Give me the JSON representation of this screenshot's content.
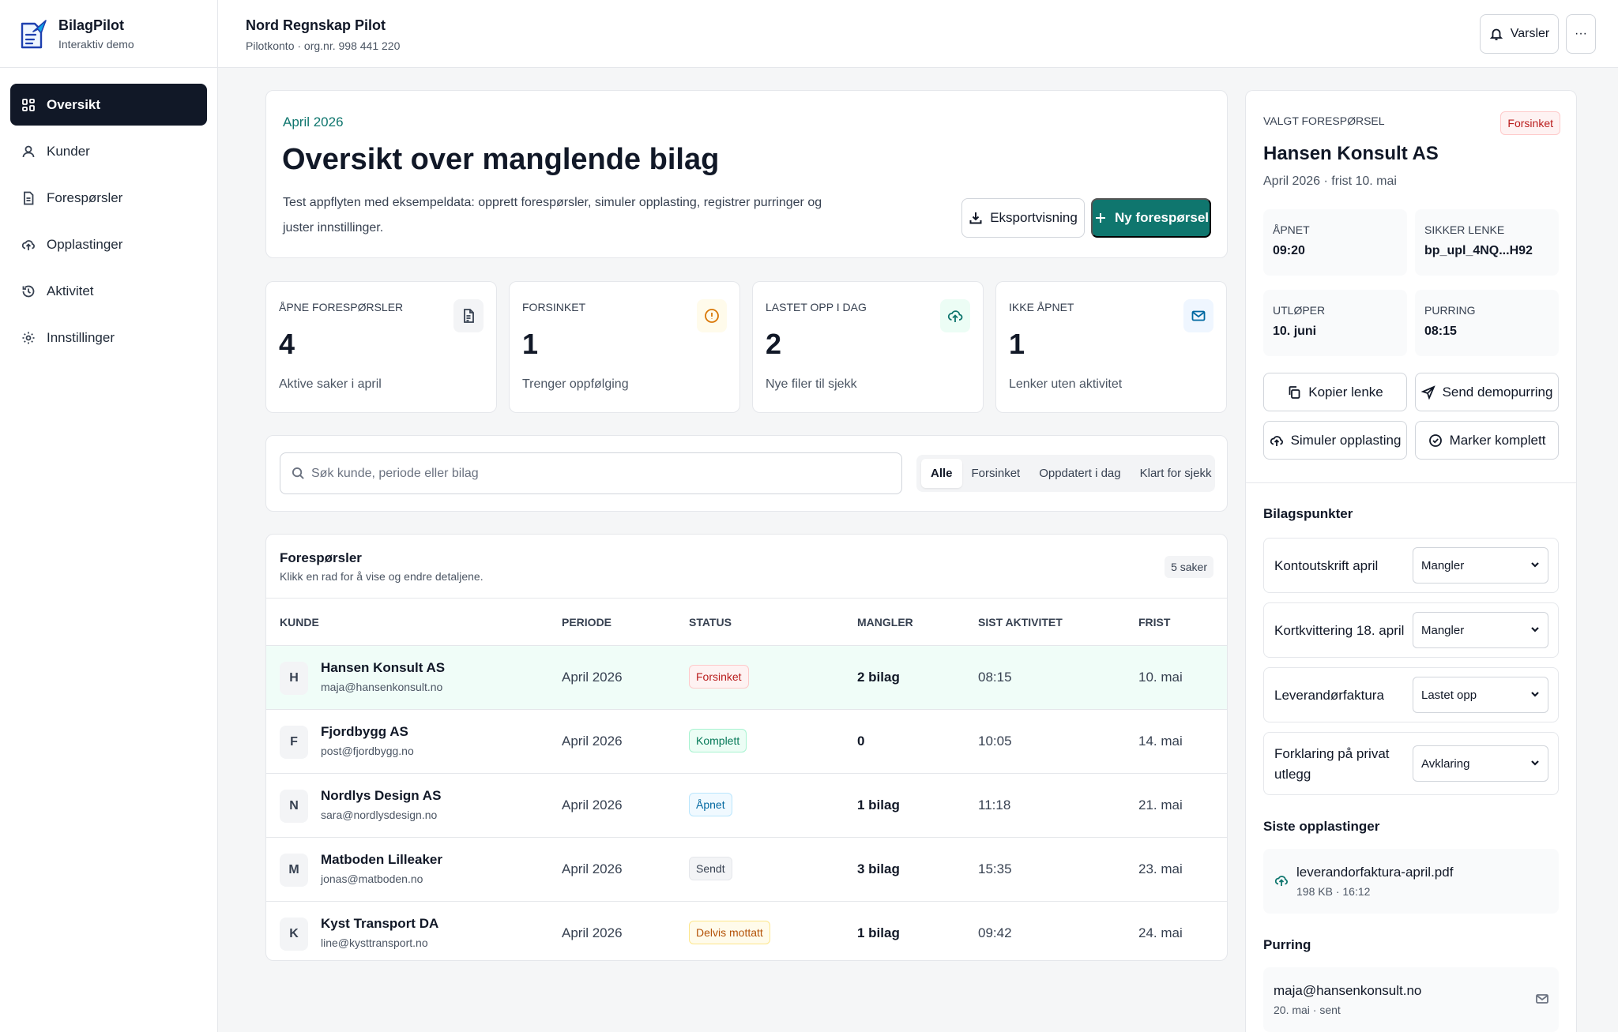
{
  "brand": {
    "name": "BilagPilot",
    "subtitle": "Interaktiv demo"
  },
  "nav": [
    {
      "label": "Oversikt",
      "icon": "grid-icon",
      "active": true
    },
    {
      "label": "Kunder",
      "icon": "user-icon"
    },
    {
      "label": "Forespørsler",
      "icon": "document-icon"
    },
    {
      "label": "Opplastinger",
      "icon": "cloud-upload-icon"
    },
    {
      "label": "Aktivitet",
      "icon": "history-icon"
    },
    {
      "label": "Innstillinger",
      "icon": "gear-icon"
    }
  ],
  "topbar": {
    "org_name": "Nord Regnskap Pilot",
    "org_sub": "Pilotkonto · org.nr. 998 441 220",
    "notify_label": "Varsler",
    "more_label": "···"
  },
  "hero": {
    "period": "April 2026",
    "title": "Oversikt over manglende bilag",
    "description": "Test appflyten med eksempeldata: opprett forespørsler, simuler opplasting, registrer purringer og juster innstillinger.",
    "export_label": "Eksportvisning",
    "new_label": "Ny forespørsel"
  },
  "stats": [
    {
      "label": "Åpne forespørsler",
      "value": "4",
      "sub": "Aktive saker i april",
      "icon": "document-icon",
      "color": "#374151",
      "bg": "#f3f4f6"
    },
    {
      "label": "Forsinket",
      "value": "1",
      "sub": "Trenger oppfølging",
      "icon": "alert-circle-icon",
      "color": "#d97706",
      "bg": "#fffbeb"
    },
    {
      "label": "Lastet opp i dag",
      "value": "2",
      "sub": "Nye filer til sjekk",
      "icon": "cloud-upload-icon",
      "color": "#0f766e",
      "bg": "#ecfdf5"
    },
    {
      "label": "Ikke åpnet",
      "value": "1",
      "sub": "Lenker uten aktivitet",
      "icon": "mail-icon",
      "color": "#0369a1",
      "bg": "#eff6ff"
    }
  ],
  "search": {
    "placeholder": "Søk kunde, periode eller bilag",
    "value": ""
  },
  "filters": [
    "Alle",
    "Forsinket",
    "Oppdatert i dag",
    "Klart for sjekk"
  ],
  "table": {
    "title": "Forespørsler",
    "subtitle": "Klikk en rad for å vise og endre detaljene.",
    "count": "5 saker",
    "columns": [
      "Kunde",
      "Periode",
      "Status",
      "Mangler",
      "Sist aktivitet",
      "Frist"
    ],
    "rows": [
      {
        "initial": "H",
        "name": "Hansen Konsult AS",
        "email": "maja@hansenkonsult.no",
        "period": "April 2026",
        "status": "Forsinket",
        "status_color": "#b91c1c",
        "status_bg": "#fef2f2",
        "status_border": "#fecaca",
        "missing": "2 bilag",
        "last": "08:15",
        "due": "10. mai",
        "selected": true
      },
      {
        "initial": "F",
        "name": "Fjordbygg AS",
        "email": "post@fjordbygg.no",
        "period": "April 2026",
        "status": "Komplett",
        "status_color": "#047857",
        "status_bg": "#ecfdf5",
        "status_border": "#a7f3d0",
        "missing": "0",
        "last": "10:05",
        "due": "14. mai"
      },
      {
        "initial": "N",
        "name": "Nordlys Design AS",
        "email": "sara@nordlysdesign.no",
        "period": "April 2026",
        "status": "Åpnet",
        "status_color": "#0369a1",
        "status_bg": "#f0f9ff",
        "status_border": "#bae6fd",
        "missing": "1 bilag",
        "last": "11:18",
        "due": "21. mai"
      },
      {
        "initial": "M",
        "name": "Matboden Lilleaker",
        "email": "jonas@matboden.no",
        "period": "April 2026",
        "status": "Sendt",
        "status_color": "#374151",
        "status_bg": "#f3f4f6",
        "status_border": "#e5e7eb",
        "missing": "3 bilag",
        "last": "15:35",
        "due": "23. mai"
      },
      {
        "initial": "K",
        "name": "Kyst Transport DA",
        "email": "line@kysttransport.no",
        "period": "April 2026",
        "status": "Delvis mottatt",
        "status_color": "#b45309",
        "status_bg": "#fffbeb",
        "status_border": "#fde68a",
        "missing": "1 bilag",
        "last": "09:42",
        "due": "24. mai"
      }
    ]
  },
  "panel": {
    "label": "Valgt forespørsel",
    "badge": "Forsinket",
    "name": "Hansen Konsult AS",
    "meta": "April 2026 · frist 10. mai",
    "details": [
      {
        "label": "Åpnet",
        "value": "09:20"
      },
      {
        "label": "Sikker lenke",
        "value": "bp_upl_4NQ...H92"
      },
      {
        "label": "Utløper",
        "value": "10. juni"
      },
      {
        "label": "Purring",
        "value": "08:15"
      }
    ],
    "actions": [
      {
        "label": "Kopier lenke",
        "icon": "copy-icon"
      },
      {
        "label": "Send demopurring",
        "icon": "send-icon"
      },
      {
        "label": "Simuler opplasting",
        "icon": "cloud-upload-icon"
      },
      {
        "label": "Marker komplett",
        "icon": "check-circle-icon"
      }
    ],
    "items_title": "Bilagspunkter",
    "items": [
      {
        "name": "Kontoutskrift april",
        "status": "Mangler"
      },
      {
        "name": "Kortkvittering 18. april",
        "status": "Mangler"
      },
      {
        "name": "Leverandørfaktura",
        "status": "Lastet opp"
      },
      {
        "name": "Forklaring på privat utlegg",
        "status": "Avklaring"
      }
    ],
    "uploads_title": "Siste opplastinger",
    "upload": {
      "file": "leverandorfaktura-april.pdf",
      "meta": "198 KB · 16:12"
    },
    "reminder_title": "Purring",
    "reminder": {
      "email": "maja@hansenkonsult.no",
      "meta": "20. mai · sent"
    }
  }
}
